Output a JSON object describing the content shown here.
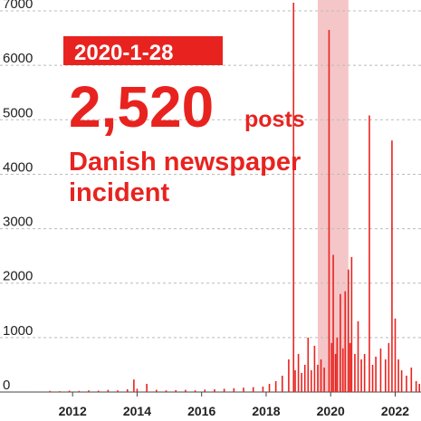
{
  "chart_data": {
    "type": "bar",
    "x": [
      2011.0,
      2011.3,
      2011.6,
      2011.9,
      2012.2,
      2012.5,
      2012.8,
      2013.1,
      2013.4,
      2013.7,
      2013.9,
      2014.0,
      2014.3,
      2014.6,
      2014.9,
      2015.2,
      2015.5,
      2015.8,
      2016.1,
      2016.4,
      2016.7,
      2017.0,
      2017.3,
      2017.6,
      2017.9,
      2018.1,
      2018.3,
      2018.5,
      2018.7,
      2018.85,
      2018.9,
      2019.0,
      2019.1,
      2019.2,
      2019.3,
      2019.4,
      2019.5,
      2019.6,
      2019.7,
      2019.8,
      2019.95,
      2020.03,
      2020.08,
      2020.15,
      2020.2,
      2020.3,
      2020.38,
      2020.45,
      2020.55,
      2020.6,
      2020.65,
      2020.75,
      2020.85,
      2020.95,
      2021.05,
      2021.2,
      2021.3,
      2021.4,
      2021.55,
      2021.7,
      2021.8,
      2021.9,
      2022.0,
      2022.1,
      2022.2,
      2022.35,
      2022.5,
      2022.65,
      2022.75
    ],
    "values": [
      10,
      20,
      15,
      25,
      20,
      30,
      25,
      40,
      30,
      50,
      230,
      60,
      150,
      40,
      30,
      35,
      40,
      30,
      45,
      50,
      60,
      70,
      80,
      90,
      100,
      150,
      200,
      300,
      600,
      7150,
      400,
      700,
      350,
      500,
      1000,
      400,
      850,
      500,
      600,
      450,
      6650,
      900,
      2520,
      700,
      1000,
      1800,
      800,
      1850,
      2250,
      900,
      2480,
      700,
      1300,
      600,
      700,
      5080,
      500,
      650,
      800,
      600,
      900,
      4620,
      1350,
      600,
      400,
      300,
      450,
      200,
      150
    ],
    "color": "#e8231f",
    "xlim": [
      2009.75,
      2022.8
    ],
    "xticks": [
      2012,
      2014,
      2016,
      2018,
      2020,
      2022
    ],
    "ylim": [
      0,
      7200
    ],
    "yticks": [
      0,
      1000,
      2000,
      3000,
      4000,
      5000,
      6000,
      7000
    ],
    "grid": true,
    "highlight_range": [
      2019.6,
      2020.55
    ],
    "highlight_color": "#f4c6c8",
    "annotation": {
      "date": "2020-1-28",
      "value": 2520,
      "value_label": "2,520",
      "unit": "posts",
      "text_lines": [
        "Danish newspaper",
        "incident"
      ]
    }
  }
}
